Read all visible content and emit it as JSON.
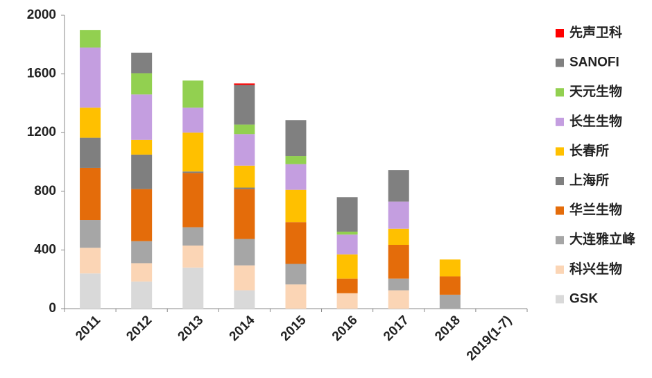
{
  "chart_data": {
    "type": "stacked_bar",
    "categories": [
      "2011",
      "2012",
      "2013",
      "2014",
      "2015",
      "2016",
      "2017",
      "2018",
      "2019(1-7)"
    ],
    "series": [
      {
        "name": "GSK",
        "color": "#d9d9d9",
        "values": [
          240,
          185,
          280,
          125,
          0,
          0,
          0,
          0,
          0
        ]
      },
      {
        "name": "科兴生物",
        "color": "#fbd5b5",
        "values": [
          175,
          125,
          150,
          170,
          165,
          105,
          125,
          0,
          0
        ]
      },
      {
        "name": "大连雅立峰",
        "color": "#a6a6a6",
        "values": [
          190,
          150,
          125,
          180,
          140,
          0,
          80,
          95,
          0
        ]
      },
      {
        "name": "华兰生物",
        "color": "#e46c0a",
        "values": [
          355,
          355,
          370,
          340,
          285,
          100,
          230,
          125,
          0
        ]
      },
      {
        "name": "上海所",
        "color": "#7f7f7f",
        "values": [
          205,
          235,
          10,
          10,
          0,
          0,
          0,
          0,
          0
        ]
      },
      {
        "name": "长春所",
        "color": "#ffc000",
        "values": [
          205,
          100,
          265,
          150,
          220,
          165,
          110,
          115,
          0
        ]
      },
      {
        "name": "长生生物",
        "color": "#c49ee0",
        "values": [
          410,
          310,
          170,
          215,
          175,
          135,
          185,
          0,
          0
        ]
      },
      {
        "name": "天元生物",
        "color": "#92d050",
        "values": [
          120,
          145,
          185,
          65,
          55,
          20,
          0,
          0,
          0
        ]
      },
      {
        "name": "SANOFI",
        "color": "#808080",
        "values": [
          0,
          140,
          0,
          270,
          245,
          235,
          215,
          0,
          0
        ]
      },
      {
        "name": "先声卫科",
        "color": "#ff0000",
        "values": [
          0,
          0,
          0,
          10,
          0,
          0,
          0,
          0,
          0
        ]
      }
    ],
    "ylim": [
      0,
      2000
    ],
    "yticks": [
      0,
      400,
      800,
      1200,
      1600,
      2000
    ],
    "grid": false
  }
}
